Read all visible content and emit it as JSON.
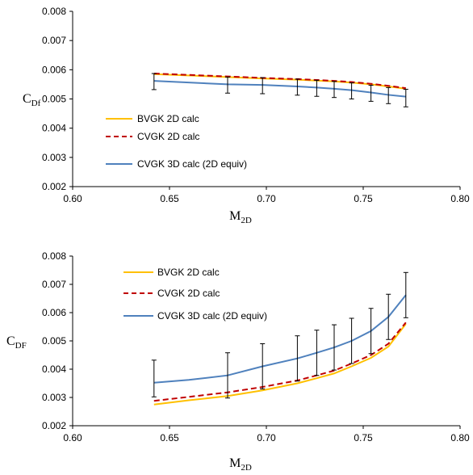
{
  "chart_data": [
    {
      "type": "line",
      "xlabel": "M",
      "xlabel_sub": "2D",
      "ylabel": "C",
      "ylabel_sub": "Df",
      "xlim": [
        0.6,
        0.8
      ],
      "ylim": [
        0.002,
        0.008
      ],
      "xticks": [
        "0.60",
        "0.65",
        "0.70",
        "0.75",
        "0.80"
      ],
      "yticks": [
        "0.002",
        "0.003",
        "0.004",
        "0.005",
        "0.006",
        "0.007",
        "0.008"
      ],
      "grid": false,
      "legend_position": "bottom-left",
      "series": [
        {
          "name": "BVGK 2D calc",
          "color": "#FFC000",
          "dash": "solid",
          "x": [
            0.642,
            0.68,
            0.698,
            0.716,
            0.726,
            0.735,
            0.744,
            0.754,
            0.763,
            0.772
          ],
          "y": [
            0.00585,
            0.00575,
            0.0057,
            0.00566,
            0.00563,
            0.0056,
            0.00556,
            0.0055,
            0.00543,
            0.00535
          ]
        },
        {
          "name": "CVGK 2D calc",
          "color": "#C00000",
          "dash": "dashed",
          "x": [
            0.642,
            0.68,
            0.698,
            0.716,
            0.726,
            0.735,
            0.744,
            0.754,
            0.763,
            0.772
          ],
          "y": [
            0.00587,
            0.00577,
            0.00572,
            0.00568,
            0.00565,
            0.00562,
            0.00558,
            0.00552,
            0.00545,
            0.00537
          ]
        },
        {
          "name": "CVGK 3D calc (2D equiv)",
          "color": "#4F81BD",
          "dash": "solid",
          "x": [
            0.642,
            0.68,
            0.698,
            0.716,
            0.726,
            0.735,
            0.744,
            0.754,
            0.763,
            0.772
          ],
          "y": [
            0.00562,
            0.0055,
            0.00548,
            0.00543,
            0.00539,
            0.00535,
            0.0053,
            0.00522,
            0.00514,
            0.00508
          ],
          "error_minus": [
            0.0003,
            0.0003,
            0.0003,
            0.0003,
            0.0003,
            0.0003,
            0.0003,
            0.0003,
            0.0003,
            0.00035
          ],
          "error_plus": [
            0.00025,
            0.00025,
            0.00025,
            0.00025,
            0.00025,
            0.00025,
            0.00025,
            0.00025,
            0.00025,
            0.00025
          ]
        }
      ]
    },
    {
      "type": "line",
      "xlabel": "M",
      "xlabel_sub": "2D",
      "ylabel": "C",
      "ylabel_sub": "DF",
      "xlim": [
        0.6,
        0.8
      ],
      "ylim": [
        0.002,
        0.008
      ],
      "xticks": [
        "0.60",
        "0.65",
        "0.70",
        "0.75",
        "0.80"
      ],
      "yticks": [
        "0.002",
        "0.003",
        "0.004",
        "0.005",
        "0.006",
        "0.007",
        "0.008"
      ],
      "grid": false,
      "legend_position": "top-left",
      "series": [
        {
          "name": "BVGK 2D calc",
          "color": "#FFC000",
          "dash": "solid",
          "x": [
            0.642,
            0.66,
            0.68,
            0.698,
            0.716,
            0.726,
            0.735,
            0.744,
            0.754,
            0.763,
            0.772
          ],
          "y": [
            0.00275,
            0.0029,
            0.00305,
            0.00325,
            0.0035,
            0.00368,
            0.00385,
            0.0041,
            0.0044,
            0.0048,
            0.0056
          ]
        },
        {
          "name": "CVGK 2D calc",
          "color": "#C00000",
          "dash": "dashed",
          "x": [
            0.642,
            0.66,
            0.68,
            0.698,
            0.716,
            0.726,
            0.735,
            0.744,
            0.754,
            0.763,
            0.772
          ],
          "y": [
            0.00288,
            0.00302,
            0.00318,
            0.00337,
            0.0036,
            0.00378,
            0.00395,
            0.0042,
            0.0045,
            0.0049,
            0.00565
          ]
        },
        {
          "name": "CVGK 3D calc (2D equiv)",
          "color": "#4F81BD",
          "dash": "solid",
          "x": [
            0.642,
            0.66,
            0.68,
            0.698,
            0.716,
            0.726,
            0.735,
            0.744,
            0.754,
            0.763,
            0.772
          ],
          "y": [
            0.00352,
            0.00362,
            0.00378,
            0.0041,
            0.00438,
            0.00458,
            0.00477,
            0.005,
            0.00535,
            0.00585,
            0.00662
          ],
          "error_minus": [
            0.0005,
            null,
            0.0008,
            0.0008,
            0.0008,
            0.0008,
            0.0008,
            0.0008,
            0.0008,
            0.0008,
            0.0008
          ],
          "error_plus": [
            0.0008,
            null,
            0.0008,
            0.0008,
            0.0008,
            0.0008,
            0.0008,
            0.0008,
            0.0008,
            0.0008,
            0.0008
          ]
        }
      ]
    }
  ]
}
